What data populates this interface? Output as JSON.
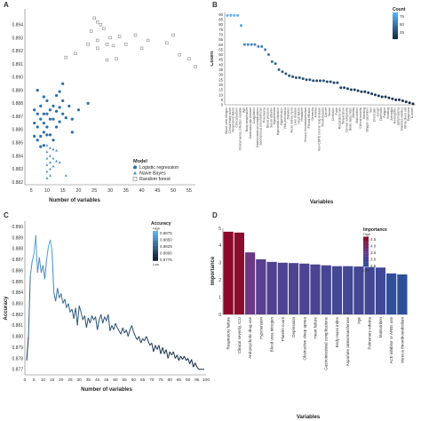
{
  "chart_data": [
    {
      "panel": "A",
      "type": "scatter",
      "xlabel": "Number of variables",
      "ylabel": "",
      "xlim": [
        3,
        57
      ],
      "ylim": [
        0.8818,
        0.8952
      ],
      "xticks": [
        5,
        10,
        15,
        20,
        25,
        30,
        35,
        40,
        45,
        50,
        55
      ],
      "yticks": [
        0.882,
        0.883,
        0.884,
        0.885,
        0.886,
        0.887,
        0.888,
        0.889,
        0.89,
        0.891,
        0.892,
        0.893,
        0.894
      ],
      "legend_title": "Model",
      "legend_position": "bottom-right",
      "series": [
        {
          "name": "Logistic regression",
          "marker": "circle",
          "color": "#2a6fb0",
          "points": [
            [
              6,
              0.8875
            ],
            [
              6,
              0.8865
            ],
            [
              6,
              0.8855
            ],
            [
              7,
              0.889
            ],
            [
              7,
              0.8872
            ],
            [
              7,
              0.8862
            ],
            [
              7,
              0.8852
            ],
            [
              8,
              0.8878
            ],
            [
              8,
              0.8868
            ],
            [
              8,
              0.8855
            ],
            [
              8,
              0.8847
            ],
            [
              9,
              0.8885
            ],
            [
              9,
              0.8872
            ],
            [
              9,
              0.8865
            ],
            [
              9,
              0.8858
            ],
            [
              9,
              0.8848
            ],
            [
              10,
              0.8882
            ],
            [
              10,
              0.8872
            ],
            [
              10,
              0.8862
            ],
            [
              10,
              0.8856
            ],
            [
              11,
              0.8875
            ],
            [
              11,
              0.8868
            ],
            [
              11,
              0.8856
            ],
            [
              12,
              0.8878
            ],
            [
              12,
              0.8868
            ],
            [
              12,
              0.8852
            ],
            [
              13,
              0.8886
            ],
            [
              13,
              0.8874
            ],
            [
              13,
              0.8862
            ],
            [
              14,
              0.8889
            ],
            [
              14,
              0.8877
            ],
            [
              14,
              0.8866
            ],
            [
              15,
              0.8895
            ],
            [
              15,
              0.8882
            ],
            [
              15,
              0.8872
            ],
            [
              16,
              0.8869
            ],
            [
              17,
              0.8878
            ],
            [
              18,
              0.8868
            ],
            [
              18,
              0.8858
            ],
            [
              20,
              0.8875
            ],
            [
              23,
              0.888
            ]
          ]
        },
        {
          "name": "Naive Bayes",
          "marker": "triangle",
          "color": "#4a90cc",
          "points": [
            [
              10,
              0.8848
            ],
            [
              10,
              0.8843
            ],
            [
              10,
              0.8838
            ],
            [
              10,
              0.8833
            ],
            [
              10,
              0.8828
            ],
            [
              10,
              0.8823
            ],
            [
              11,
              0.8846
            ],
            [
              11,
              0.884
            ],
            [
              11,
              0.8835
            ],
            [
              11,
              0.883
            ],
            [
              11,
              0.8825
            ],
            [
              12,
              0.8845
            ],
            [
              12,
              0.8838
            ],
            [
              12,
              0.8832
            ],
            [
              13,
              0.8844
            ],
            [
              13,
              0.8836
            ],
            [
              14,
              0.8835
            ],
            [
              16,
              0.8825
            ]
          ]
        },
        {
          "name": "Random forest",
          "marker": "square",
          "color": "#9a9a9a",
          "points": [
            [
              16,
              0.8915
            ],
            [
              19,
              0.8918
            ],
            [
              23,
              0.8925
            ],
            [
              24,
              0.8935
            ],
            [
              25,
              0.8945
            ],
            [
              26,
              0.8942
            ],
            [
              26,
              0.8928
            ],
            [
              26,
              0.8922
            ],
            [
              27,
              0.894
            ],
            [
              28,
              0.8937
            ],
            [
              29,
              0.8925
            ],
            [
              29,
              0.8913
            ],
            [
              30,
              0.893
            ],
            [
              31,
              0.8924
            ],
            [
              32,
              0.8914
            ],
            [
              33,
              0.8931
            ],
            [
              35,
              0.8925
            ],
            [
              38,
              0.8932
            ],
            [
              40,
              0.8922
            ],
            [
              42,
              0.8928
            ],
            [
              48,
              0.8926
            ],
            [
              50,
              0.8932
            ],
            [
              52,
              0.8917
            ],
            [
              55,
              0.8914
            ],
            [
              57,
              0.8908
            ]
          ]
        }
      ]
    },
    {
      "panel": "B",
      "type": "scatter",
      "xlabel": "Variables",
      "ylabel": "Count",
      "ylim": [
        0,
        92
      ],
      "yticks": [
        0,
        5,
        10,
        15,
        20,
        25,
        30,
        35,
        40,
        45,
        50,
        55,
        60,
        65,
        70,
        75,
        80,
        85,
        90
      ],
      "legend_title": "Count",
      "legend_position": "top-right",
      "legend_ticks": [
        "75",
        "50",
        "25"
      ],
      "categories": [
        "Blood urea nitrogen",
        "Clinical frailty score",
        "Respiratory failure",
        "Clinical pattern",
        "Clinical worse, infection variable",
        "Age",
        "Body temperature",
        "Cardiovascular disease",
        "Coagulation",
        "Gastrointestinal complications",
        "Spontaneous pneumothorax",
        "Pneumonia",
        "Blood pressure",
        "Serum albumin",
        "Hypothermia",
        "Myocardial infarction",
        "Hypertension",
        "Viral pneumonia",
        "Diabetes",
        "Acute kidney injury",
        "Liver disease",
        "Heart failure",
        "Headache",
        "Venous thromboembolism",
        "Pleural effusion",
        "Dementia",
        "Anemia",
        "Non-COPD chronic lung disease",
        "Renal disease",
        "Cancer",
        "Stroke",
        "Confusion",
        "Pulse",
        "Respiratory rate",
        "Temperature",
        "Clinical complexity",
        "Body mass index",
        "Obesity",
        "Malnutrition",
        "Clinical severity",
        "Smoking",
        "Oxygen saturation",
        "Sex",
        "Chest pain",
        "Cough",
        "Diarrhoea",
        "Fatigue",
        "Vomiting",
        "Arthralgia",
        "Hemoglobin",
        "Lymphopenia",
        "Diabetes mellitus",
        "White blood cell",
        "Dyspnoea",
        "D-dimer"
      ],
      "values": [
        89,
        89,
        89,
        89,
        79,
        60,
        60,
        60,
        60,
        58,
        58,
        55,
        50,
        43,
        41,
        35,
        33,
        31,
        29,
        28,
        27,
        27,
        26,
        25,
        25,
        24,
        24,
        24,
        24,
        23,
        23,
        22,
        22,
        17,
        17,
        16,
        15,
        15,
        14,
        13,
        13,
        12,
        11,
        10,
        9,
        8,
        8,
        7,
        6,
        5,
        5,
        4,
        3,
        2,
        1
      ]
    },
    {
      "panel": "C",
      "type": "line",
      "xlabel": "Number of variables",
      "ylabel": "Accuracy",
      "xlim": [
        0,
        100
      ],
      "ylim": [
        0.8765,
        0.8905
      ],
      "xticks": [
        0,
        5,
        10,
        15,
        20,
        25,
        30,
        35,
        40,
        45,
        50,
        55,
        60,
        65,
        70,
        75,
        80,
        85,
        90,
        95,
        100
      ],
      "yticks": [
        0.877,
        0.878,
        0.879,
        0.88,
        0.881,
        0.882,
        0.883,
        0.884,
        0.885,
        0.886,
        0.887,
        0.888,
        0.889,
        0.89
      ],
      "legend_title": "Accuracy",
      "legend_position": "top-right",
      "legend_high": "High",
      "legend_low": "Low",
      "legend_ticks": [
        "0.8875",
        "0.8850",
        "0.8825",
        "0.8800",
        "0.8775"
      ],
      "x": [
        1,
        2,
        3,
        4,
        5,
        6,
        7,
        8,
        9,
        10,
        11,
        12,
        13,
        14,
        15,
        16,
        17,
        18,
        19,
        20,
        21,
        22,
        23,
        24,
        25,
        26,
        27,
        28,
        29,
        30,
        31,
        32,
        33,
        34,
        35,
        36,
        37,
        38,
        39,
        40,
        41,
        42,
        43,
        44,
        45,
        46,
        47,
        48,
        49,
        50,
        51,
        52,
        53,
        54,
        55,
        56,
        57,
        58,
        59,
        60,
        61,
        62,
        63,
        64,
        65,
        66,
        67,
        68,
        69,
        70,
        71,
        72,
        73,
        74,
        75,
        76,
        77,
        78,
        79,
        80,
        81,
        82,
        83,
        84,
        85,
        86,
        87,
        88,
        89,
        90,
        91,
        92,
        93,
        94,
        95,
        96,
        97,
        98,
        99
      ],
      "values": [
        0.8778,
        0.88,
        0.8855,
        0.8868,
        0.8875,
        0.8892,
        0.8858,
        0.8872,
        0.8858,
        0.8865,
        0.8852,
        0.887,
        0.8882,
        0.8888,
        0.8878,
        0.884,
        0.8832,
        0.8844,
        0.8835,
        0.8839,
        0.883,
        0.8834,
        0.8826,
        0.883,
        0.8822,
        0.8825,
        0.8816,
        0.8826,
        0.881,
        0.8828,
        0.8822,
        0.8815,
        0.8819,
        0.8808,
        0.8817,
        0.8812,
        0.8819,
        0.8815,
        0.8818,
        0.8806,
        0.8815,
        0.882,
        0.8812,
        0.8818,
        0.8814,
        0.882,
        0.8805,
        0.881,
        0.8806,
        0.8812,
        0.8808,
        0.8805,
        0.8802,
        0.8808,
        0.8803,
        0.8806,
        0.88,
        0.8806,
        0.881,
        0.8804,
        0.88,
        0.8797,
        0.88,
        0.8794,
        0.8798,
        0.8796,
        0.88,
        0.8796,
        0.8792,
        0.8794,
        0.8786,
        0.8792,
        0.8788,
        0.8792,
        0.8784,
        0.879,
        0.8784,
        0.8788,
        0.878,
        0.8786,
        0.8783,
        0.8786,
        0.878,
        0.8783,
        0.8778,
        0.8782,
        0.8779,
        0.8782,
        0.8778,
        0.878,
        0.8775,
        0.8779,
        0.8772,
        0.8776,
        0.8772,
        0.877,
        0.877,
        0.877,
        0.877
      ]
    },
    {
      "panel": "D",
      "type": "bar",
      "xlabel": "Variables",
      "ylabel": "Importance",
      "ylim": [
        0,
        5
      ],
      "yticks": [
        0,
        1,
        2,
        3,
        4,
        5
      ],
      "legend_title": "Importance",
      "legend_position": "top-right",
      "legend_high": "High",
      "legend_low": "Low",
      "legend_ticks": [
        "4.5",
        "4.0",
        "3.5",
        "3.0",
        "2.5"
      ],
      "categories": [
        "Respiratory failure",
        "Clinical severity, ICU",
        "Anti-psychotic drug use",
        "Hypotension",
        "Blood urea nitrogen",
        "Platelet count",
        "Depression",
        "Obstructive sleep apnea",
        "Heart failure",
        "Gastrointestinal complications",
        "Body mass index",
        "Aspartate aminotransferase",
        "Age",
        "Pulmonary edema",
        "Malnutrition",
        "ACE inhibitor or ARBs use",
        "Venous thromboembolism"
      ],
      "values": [
        4.8,
        4.75,
        3.6,
        3.2,
        3.05,
        3.0,
        2.98,
        2.95,
        2.9,
        2.85,
        2.8,
        2.8,
        2.78,
        2.75,
        2.72,
        2.38,
        2.32
      ]
    }
  ],
  "panel_labels": {
    "a": "A",
    "b": "B",
    "c": "C",
    "d": "D"
  },
  "legend_a": {
    "title": "Model",
    "items": [
      "Logistic regression",
      "Naive Bayes",
      "Random forest"
    ]
  }
}
